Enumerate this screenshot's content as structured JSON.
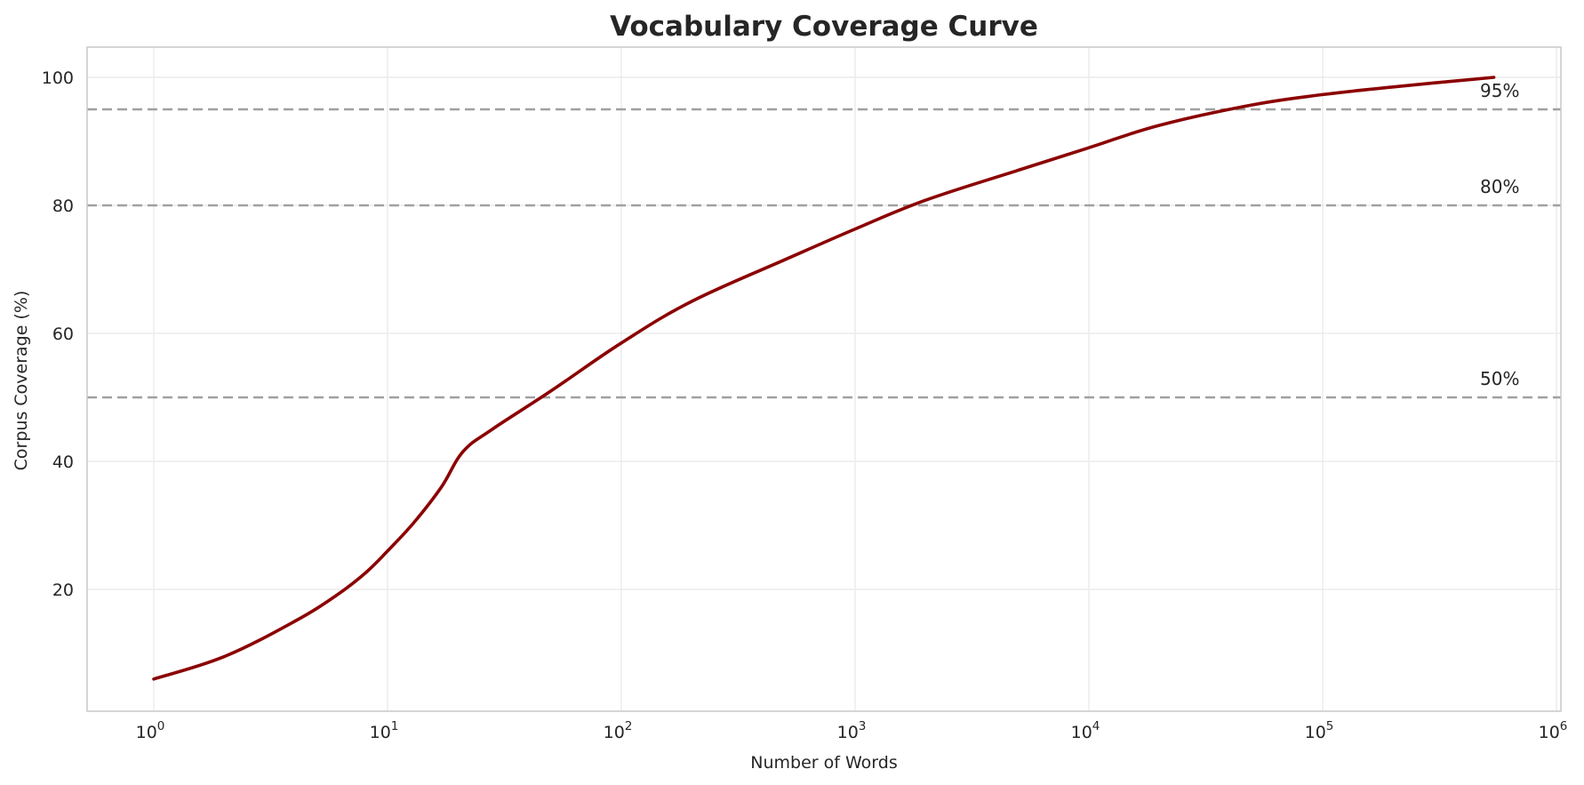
{
  "chart_data": {
    "type": "line",
    "title": "Vocabulary Coverage Curve",
    "xlabel": "Number of Words",
    "ylabel": "Corpus Coverage (%)",
    "xscale": "log",
    "xlim": [
      0.53,
      1200000
    ],
    "ylim": [
      1.3,
      104.7
    ],
    "grid": true,
    "x_ticks": [
      {
        "value": 1,
        "base": "10",
        "exp": "0"
      },
      {
        "value": 10,
        "base": "10",
        "exp": "1"
      },
      {
        "value": 100,
        "base": "10",
        "exp": "2"
      },
      {
        "value": 1000,
        "base": "10",
        "exp": "3"
      },
      {
        "value": 10000,
        "base": "10",
        "exp": "4"
      },
      {
        "value": 100000,
        "base": "10",
        "exp": "5"
      },
      {
        "value": 1000000,
        "base": "10",
        "exp": "6"
      }
    ],
    "y_ticks": [
      20,
      40,
      60,
      80,
      100
    ],
    "series": [
      {
        "name": "Coverage",
        "color": "#8b0000",
        "x": [
          1,
          2,
          4,
          6,
          8,
          10,
          13,
          17,
          21,
          28,
          50,
          100,
          200,
          500,
          1000,
          2000,
          5000,
          10000,
          20000,
          50000,
          100000,
          200000,
          540000
        ],
        "y": [
          6.0,
          9.5,
          15.0,
          19.0,
          22.5,
          26.0,
          30.5,
          36.0,
          41.5,
          45.0,
          51.0,
          58.5,
          65.0,
          71.5,
          76.3,
          80.8,
          85.5,
          89.0,
          92.5,
          95.7,
          97.3,
          98.5,
          100.0
        ]
      }
    ],
    "reference_lines": [
      {
        "y": 50,
        "label": "50%",
        "style": "dashed",
        "color": "#a0a0a0"
      },
      {
        "y": 80,
        "label": "80%",
        "style": "dashed",
        "color": "#a0a0a0"
      },
      {
        "y": 95,
        "label": "95%",
        "style": "dashed",
        "color": "#a0a0a0"
      }
    ],
    "legend": null
  }
}
